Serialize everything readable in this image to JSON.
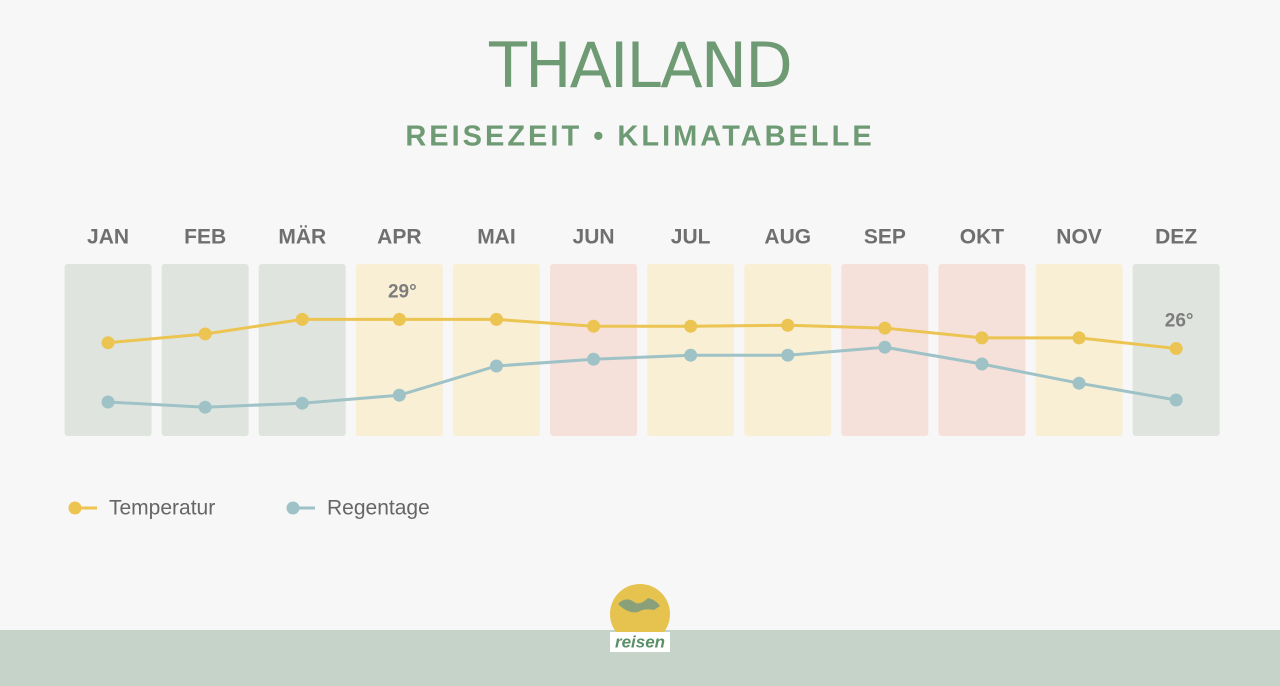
{
  "chart_data": {
    "type": "line",
    "title": "THAILAND",
    "subtitle": "REISEZEIT • KLIMATABELLE",
    "categories": [
      "JAN",
      "FEB",
      "MÄR",
      "APR",
      "MAI",
      "JUN",
      "JUL",
      "AUG",
      "SEP",
      "OKT",
      "NOV",
      "DEZ"
    ],
    "category_colors": [
      "#dfe5de",
      "#dfe5de",
      "#dfe5de",
      "#f8efd5",
      "#f8efd5",
      "#f5e0da",
      "#f8efd5",
      "#f8efd5",
      "#f5e0da",
      "#f5e0da",
      "#f8efd5",
      "#dfe5de"
    ],
    "series": [
      {
        "name": "Temperatur",
        "color": "#ecc452",
        "values": [
          26.6,
          27.5,
          29,
          29,
          29,
          28.3,
          28.3,
          28.4,
          28.1,
          27.1,
          27.1,
          26
        ],
        "value_labels": [
          null,
          null,
          null,
          "29°",
          null,
          null,
          null,
          null,
          null,
          null,
          null,
          "26°"
        ]
      },
      {
        "name": "Regentage",
        "color": "#9fc2c6",
        "axis": "y2",
        "values": [
          2.5,
          1.2,
          2.2,
          4.2,
          11.5,
          13.2,
          14.2,
          14.2,
          16.2,
          12,
          7.2,
          3
        ]
      }
    ],
    "ylim": [
      17,
      34.7
    ],
    "y2lim": [
      -6,
      37
    ],
    "brand": "reisen"
  }
}
